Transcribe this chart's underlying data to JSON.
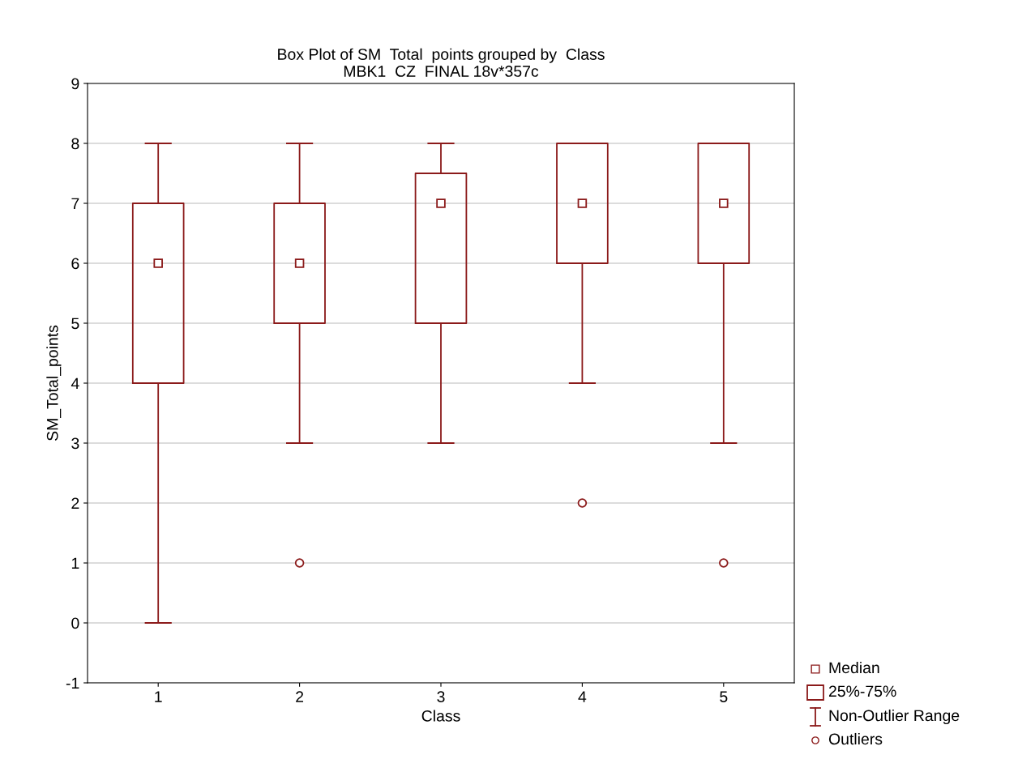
{
  "chart_data": {
    "type": "box",
    "title": "Box Plot of SM  Total  points grouped by  Class\nMBK1  CZ  FINAL 18v*357c",
    "xlabel": "Class",
    "ylabel": "SM_Total_points",
    "categories": [
      "1",
      "2",
      "3",
      "4",
      "5"
    ],
    "boxes": [
      {
        "low": 0,
        "q1": 4,
        "median": 6,
        "q3": 7,
        "high": 8
      },
      {
        "low": 3,
        "q1": 5,
        "median": 6,
        "q3": 7,
        "high": 8,
        "outliers": [
          1
        ]
      },
      {
        "low": 3,
        "q1": 5,
        "median": 7,
        "q3": 7.5,
        "high": 8
      },
      {
        "low": 4,
        "q1": 6,
        "median": 7,
        "q3": 8,
        "high": 8,
        "outliers": [
          2
        ]
      },
      {
        "low": 3,
        "q1": 6,
        "median": 7,
        "q3": 8,
        "high": 8,
        "outliers": [
          1
        ]
      }
    ],
    "color": "#8b1a1a",
    "ylim": [
      -1,
      9
    ],
    "yticks": [
      -1,
      0,
      1,
      2,
      3,
      4,
      5,
      6,
      7,
      8,
      9
    ],
    "grid": "y",
    "marker": "square",
    "annotations": [
      "Median",
      "25%-75%",
      "Non-Outlier Range",
      "Outliers"
    ]
  }
}
